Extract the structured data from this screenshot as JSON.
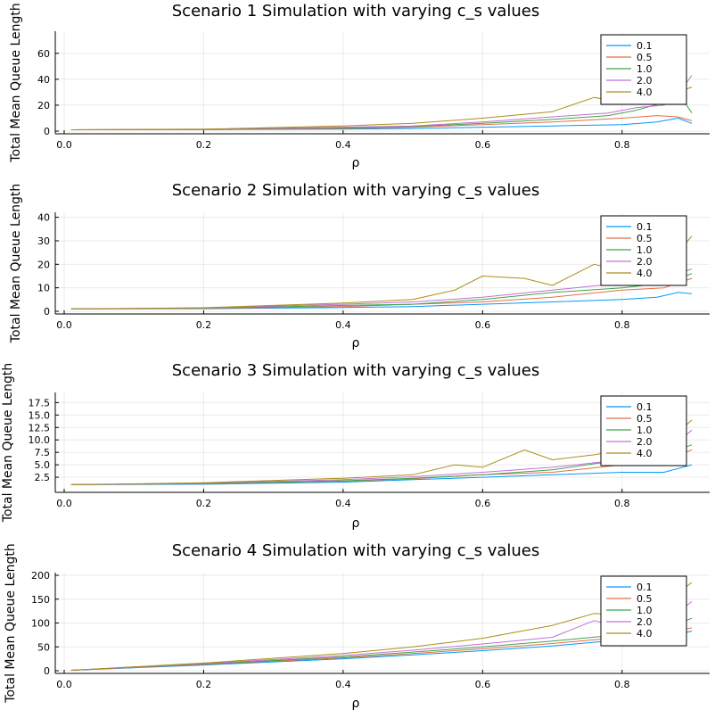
{
  "colors": [
    "#009AFA",
    "#E36F47",
    "#3EA44E",
    "#C371D2",
    "#AC8E18"
  ],
  "chart_data": [
    {
      "type": "line",
      "title": "Scenario 1 Simulation with varying c_s values",
      "xlabel": "ρ",
      "ylabel": "Total Mean Queue Length",
      "xlim": [
        0,
        0.9
      ],
      "ylim": [
        0,
        75
      ],
      "xticks": [
        {
          "v": 0,
          "label": "0.0"
        },
        {
          "v": 0.2,
          "label": "0.2"
        },
        {
          "v": 0.4,
          "label": "0.4"
        },
        {
          "v": 0.6,
          "label": "0.6"
        },
        {
          "v": 0.8,
          "label": "0.8"
        }
      ],
      "yticks": [
        {
          "v": 0,
          "label": "0"
        },
        {
          "v": 20,
          "label": "20"
        },
        {
          "v": 40,
          "label": "40"
        },
        {
          "v": 60,
          "label": "60"
        }
      ],
      "legend_position": "top-right",
      "series": [
        {
          "name": "0.1",
          "points": [
            [
              0.01,
              1
            ],
            [
              0.2,
              1.1
            ],
            [
              0.4,
              1.5
            ],
            [
              0.5,
              2
            ],
            [
              0.6,
              3
            ],
            [
              0.7,
              4
            ],
            [
              0.8,
              5
            ],
            [
              0.85,
              7
            ],
            [
              0.88,
              10
            ],
            [
              0.9,
              6
            ]
          ]
        },
        {
          "name": "0.5",
          "points": [
            [
              0.01,
              1
            ],
            [
              0.2,
              1.2
            ],
            [
              0.4,
              2
            ],
            [
              0.5,
              3
            ],
            [
              0.6,
              5
            ],
            [
              0.7,
              7
            ],
            [
              0.8,
              10
            ],
            [
              0.85,
              12
            ],
            [
              0.88,
              11
            ],
            [
              0.9,
              8
            ]
          ]
        },
        {
          "name": "1.0",
          "points": [
            [
              0.01,
              1
            ],
            [
              0.2,
              1.3
            ],
            [
              0.4,
              2.5
            ],
            [
              0.5,
              3.5
            ],
            [
              0.6,
              6
            ],
            [
              0.7,
              9
            ],
            [
              0.78,
              12
            ],
            [
              0.82,
              16
            ],
            [
              0.86,
              22
            ],
            [
              0.88,
              30
            ],
            [
              0.9,
              14
            ]
          ]
        },
        {
          "name": "2.0",
          "points": [
            [
              0.01,
              1
            ],
            [
              0.2,
              1.4
            ],
            [
              0.4,
              3
            ],
            [
              0.5,
              4
            ],
            [
              0.6,
              7
            ],
            [
              0.7,
              11
            ],
            [
              0.78,
              14
            ],
            [
              0.82,
              18
            ],
            [
              0.86,
              20
            ],
            [
              0.88,
              28
            ],
            [
              0.9,
              43
            ]
          ]
        },
        {
          "name": "4.0",
          "points": [
            [
              0.01,
              1
            ],
            [
              0.2,
              1.5
            ],
            [
              0.4,
              4
            ],
            [
              0.5,
              6
            ],
            [
              0.6,
              10
            ],
            [
              0.7,
              15
            ],
            [
              0.76,
              26
            ],
            [
              0.8,
              22
            ],
            [
              0.84,
              28
            ],
            [
              0.88,
              30
            ],
            [
              0.9,
              34
            ]
          ]
        }
      ]
    },
    {
      "type": "line",
      "title": "Scenario 2 Simulation with varying c_s values",
      "xlabel": "ρ",
      "ylabel": "Total Mean Queue Length",
      "xlim": [
        0,
        0.9
      ],
      "ylim": [
        0,
        41
      ],
      "xticks": [
        {
          "v": 0,
          "label": "0.0"
        },
        {
          "v": 0.2,
          "label": "0.2"
        },
        {
          "v": 0.4,
          "label": "0.4"
        },
        {
          "v": 0.6,
          "label": "0.6"
        },
        {
          "v": 0.8,
          "label": "0.8"
        }
      ],
      "yticks": [
        {
          "v": 0,
          "label": "0"
        },
        {
          "v": 10,
          "label": "10"
        },
        {
          "v": 20,
          "label": "20"
        },
        {
          "v": 30,
          "label": "30"
        },
        {
          "v": 40,
          "label": "40"
        }
      ],
      "legend_position": "top-right",
      "series": [
        {
          "name": "0.1",
          "points": [
            [
              0.01,
              1
            ],
            [
              0.2,
              1.1
            ],
            [
              0.4,
              1.6
            ],
            [
              0.5,
              2
            ],
            [
              0.6,
              3
            ],
            [
              0.7,
              4
            ],
            [
              0.8,
              5
            ],
            [
              0.85,
              6
            ],
            [
              0.88,
              8
            ],
            [
              0.9,
              7.5
            ]
          ]
        },
        {
          "name": "0.5",
          "points": [
            [
              0.01,
              1
            ],
            [
              0.2,
              1.2
            ],
            [
              0.4,
              2
            ],
            [
              0.5,
              3
            ],
            [
              0.6,
              4
            ],
            [
              0.7,
              6
            ],
            [
              0.8,
              9
            ],
            [
              0.86,
              10
            ],
            [
              0.9,
              14
            ]
          ]
        },
        {
          "name": "1.0",
          "points": [
            [
              0.01,
              1
            ],
            [
              0.2,
              1.3
            ],
            [
              0.4,
              2.5
            ],
            [
              0.5,
              3
            ],
            [
              0.6,
              5
            ],
            [
              0.7,
              8
            ],
            [
              0.8,
              10
            ],
            [
              0.86,
              12
            ],
            [
              0.9,
              16
            ]
          ]
        },
        {
          "name": "2.0",
          "points": [
            [
              0.01,
              1
            ],
            [
              0.2,
              1.4
            ],
            [
              0.4,
              3
            ],
            [
              0.5,
              4
            ],
            [
              0.6,
              6
            ],
            [
              0.7,
              9
            ],
            [
              0.8,
              12
            ],
            [
              0.86,
              14
            ],
            [
              0.9,
              18
            ]
          ]
        },
        {
          "name": "4.0",
          "points": [
            [
              0.01,
              1
            ],
            [
              0.2,
              1.5
            ],
            [
              0.4,
              3.5
            ],
            [
              0.5,
              5
            ],
            [
              0.56,
              9
            ],
            [
              0.6,
              15
            ],
            [
              0.66,
              14
            ],
            [
              0.7,
              11
            ],
            [
              0.76,
              20
            ],
            [
              0.8,
              17
            ],
            [
              0.86,
              18
            ],
            [
              0.9,
              32
            ]
          ]
        }
      ]
    },
    {
      "type": "line",
      "title": "Scenario 3 Simulation with varying c_s values",
      "xlabel": "ρ",
      "ylabel": "Total Mean Queue Length",
      "xlim": [
        0,
        0.9
      ],
      "ylim": [
        0,
        19
      ],
      "xticks": [
        {
          "v": 0,
          "label": "0.0"
        },
        {
          "v": 0.2,
          "label": "0.2"
        },
        {
          "v": 0.4,
          "label": "0.4"
        },
        {
          "v": 0.6,
          "label": "0.6"
        },
        {
          "v": 0.8,
          "label": "0.8"
        }
      ],
      "yticks": [
        {
          "v": 2.5,
          "label": "2.5"
        },
        {
          "v": 5,
          "label": "5.0"
        },
        {
          "v": 7.5,
          "label": "7.5"
        },
        {
          "v": 10,
          "label": "10.0"
        },
        {
          "v": 12.5,
          "label": "12.5"
        },
        {
          "v": 15,
          "label": "15.0"
        },
        {
          "v": 17.5,
          "label": "17.5"
        }
      ],
      "legend_position": "top-right",
      "series": [
        {
          "name": "0.1",
          "points": [
            [
              0.01,
              1
            ],
            [
              0.2,
              1.1
            ],
            [
              0.4,
              1.5
            ],
            [
              0.5,
              2
            ],
            [
              0.6,
              2.5
            ],
            [
              0.7,
              3
            ],
            [
              0.8,
              3.5
            ],
            [
              0.86,
              3.5
            ],
            [
              0.9,
              5
            ]
          ]
        },
        {
          "name": "0.5",
          "points": [
            [
              0.01,
              1
            ],
            [
              0.2,
              1.2
            ],
            [
              0.4,
              1.7
            ],
            [
              0.5,
              2.2
            ],
            [
              0.6,
              3
            ],
            [
              0.7,
              3.5
            ],
            [
              0.8,
              5
            ],
            [
              0.86,
              6
            ],
            [
              0.9,
              8
            ]
          ]
        },
        {
          "name": "1.0",
          "points": [
            [
              0.01,
              1
            ],
            [
              0.2,
              1.2
            ],
            [
              0.4,
              1.8
            ],
            [
              0.5,
              2.3
            ],
            [
              0.6,
              3
            ],
            [
              0.7,
              4
            ],
            [
              0.8,
              6
            ],
            [
              0.86,
              7
            ],
            [
              0.9,
              9
            ]
          ]
        },
        {
          "name": "2.0",
          "points": [
            [
              0.01,
              1
            ],
            [
              0.2,
              1.3
            ],
            [
              0.4,
              2
            ],
            [
              0.5,
              2.6
            ],
            [
              0.6,
              3.5
            ],
            [
              0.7,
              4.5
            ],
            [
              0.8,
              6
            ],
            [
              0.86,
              7
            ],
            [
              0.9,
              12
            ]
          ]
        },
        {
          "name": "4.0",
          "points": [
            [
              0.01,
              1
            ],
            [
              0.2,
              1.4
            ],
            [
              0.4,
              2.3
            ],
            [
              0.5,
              3
            ],
            [
              0.56,
              5
            ],
            [
              0.6,
              4.5
            ],
            [
              0.66,
              8
            ],
            [
              0.7,
              6
            ],
            [
              0.76,
              7
            ],
            [
              0.8,
              8
            ],
            [
              0.86,
              9
            ],
            [
              0.9,
              14
            ]
          ]
        }
      ]
    },
    {
      "type": "line",
      "title": "Scenario 4 Simulation with varying c_s values",
      "xlabel": "ρ",
      "ylabel": "Total Mean Queue Length",
      "xlim": [
        0,
        0.9
      ],
      "ylim": [
        0,
        200
      ],
      "xticks": [
        {
          "v": 0,
          "label": "0.0"
        },
        {
          "v": 0.2,
          "label": "0.2"
        },
        {
          "v": 0.4,
          "label": "0.4"
        },
        {
          "v": 0.6,
          "label": "0.6"
        },
        {
          "v": 0.8,
          "label": "0.8"
        }
      ],
      "yticks": [
        {
          "v": 0,
          "label": "0"
        },
        {
          "v": 50,
          "label": "50"
        },
        {
          "v": 100,
          "label": "100"
        },
        {
          "v": 150,
          "label": "150"
        },
        {
          "v": 200,
          "label": "200"
        }
      ],
      "legend_position": "top-right",
      "series": [
        {
          "name": "0.1",
          "points": [
            [
              0.01,
              1
            ],
            [
              0.2,
              12
            ],
            [
              0.4,
              25
            ],
            [
              0.5,
              33
            ],
            [
              0.6,
              42
            ],
            [
              0.7,
              52
            ],
            [
              0.8,
              65
            ],
            [
              0.86,
              70
            ],
            [
              0.9,
              83
            ]
          ]
        },
        {
          "name": "0.5",
          "points": [
            [
              0.01,
              1
            ],
            [
              0.2,
              13
            ],
            [
              0.4,
              27
            ],
            [
              0.5,
              36
            ],
            [
              0.6,
              46
            ],
            [
              0.7,
              57
            ],
            [
              0.8,
              70
            ],
            [
              0.86,
              78
            ],
            [
              0.9,
              90
            ]
          ]
        },
        {
          "name": "1.0",
          "points": [
            [
              0.01,
              1
            ],
            [
              0.2,
              14
            ],
            [
              0.4,
              29
            ],
            [
              0.5,
              39
            ],
            [
              0.6,
              50
            ],
            [
              0.7,
              62
            ],
            [
              0.8,
              76
            ],
            [
              0.86,
              85
            ],
            [
              0.9,
              110
            ]
          ]
        },
        {
          "name": "2.0",
          "points": [
            [
              0.01,
              1
            ],
            [
              0.2,
              15
            ],
            [
              0.4,
              32
            ],
            [
              0.5,
              43
            ],
            [
              0.6,
              56
            ],
            [
              0.7,
              70
            ],
            [
              0.76,
              105
            ],
            [
              0.8,
              90
            ],
            [
              0.86,
              100
            ],
            [
              0.9,
              145
            ]
          ]
        },
        {
          "name": "4.0",
          "points": [
            [
              0.01,
              1
            ],
            [
              0.2,
              16
            ],
            [
              0.4,
              36
            ],
            [
              0.5,
              50
            ],
            [
              0.6,
              68
            ],
            [
              0.7,
              95
            ],
            [
              0.76,
              120
            ],
            [
              0.8,
              115
            ],
            [
              0.86,
              140
            ],
            [
              0.9,
              185
            ]
          ]
        }
      ]
    }
  ]
}
